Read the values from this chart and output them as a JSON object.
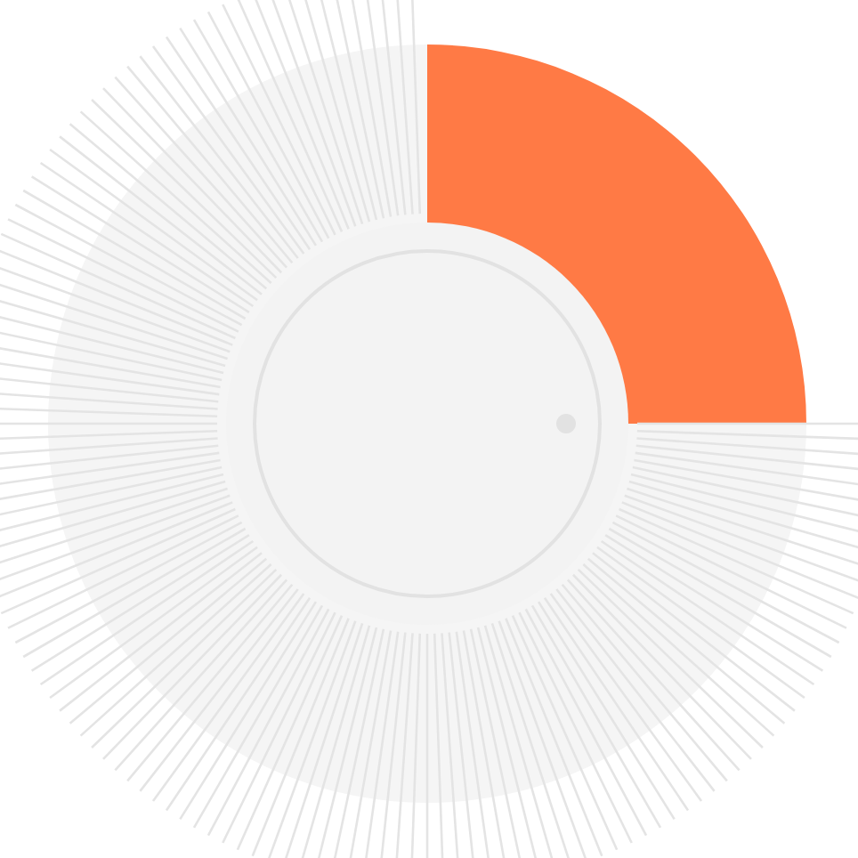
{
  "chart_data": {
    "type": "donut",
    "categories": [
      null,
      null
    ],
    "values": [
      25,
      75
    ],
    "colors": [
      "#ff7a45",
      "#f5f5f5"
    ]
  }
}
